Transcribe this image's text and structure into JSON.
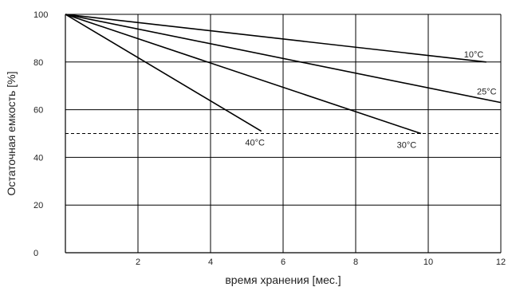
{
  "chart_data": {
    "type": "line",
    "xlabel": "время  хранения [мес.]",
    "ylabel": "Остаточная емкость [%]",
    "xlim": [
      0,
      12
    ],
    "ylim": [
      0,
      100
    ],
    "x_ticks": [
      "2",
      "4",
      "6",
      "8",
      "10",
      "12"
    ],
    "x_tick_values": [
      2,
      4,
      6,
      8,
      10,
      12
    ],
    "y_ticks": [
      "0",
      "20",
      "40",
      "60",
      "80",
      "100"
    ],
    "y_tick_values": [
      0,
      20,
      40,
      60,
      80,
      100
    ],
    "grid": true,
    "reference_line": {
      "y": 50,
      "style": "dashed"
    },
    "series": [
      {
        "name": "10°C",
        "x": [
          0,
          11.6
        ],
        "y": [
          100,
          80
        ]
      },
      {
        "name": "25°C",
        "x": [
          0,
          12
        ],
        "y": [
          100,
          63
        ]
      },
      {
        "name": "30°C",
        "x": [
          0,
          9.8
        ],
        "y": [
          100,
          50
        ]
      },
      {
        "name": "40°C",
        "x": [
          0,
          5.4
        ],
        "y": [
          100,
          51
        ]
      }
    ],
    "line_color": "#000000",
    "grid_color": "#000000"
  }
}
